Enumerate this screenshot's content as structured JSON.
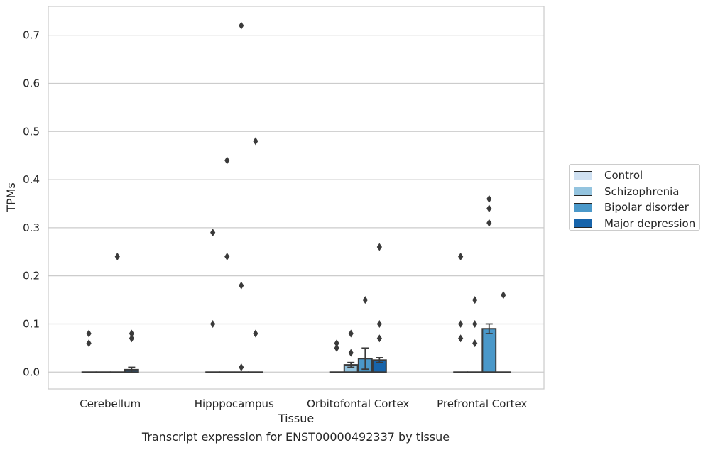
{
  "caption": "Transcript expression for ENST00000492337 by tissue",
  "colors": {
    "Control": "#d0e1f2",
    "Schizophrenia": "#94c4df",
    "Bipolar disorder": "#4a98c9",
    "Major depression": "#1764ab",
    "outline": "#3a3a3a",
    "grid": "#cccccc"
  },
  "legend": {
    "items": [
      {
        "label": "Control",
        "color": "#d0e1f2"
      },
      {
        "label": "Schizophrenia",
        "color": "#94c4df"
      },
      {
        "label": "Bipolar disorder",
        "color": "#4a98c9"
      },
      {
        "label": "Major depression",
        "color": "#1764ab"
      }
    ]
  },
  "chart_data": {
    "type": "bar",
    "title": "",
    "xlabel": "Tissue",
    "ylabel": "TPMs",
    "categories": [
      "Cerebellum",
      "Hipppocampus",
      "Orbitofontal Cortex",
      "Prefrontal Cortex"
    ],
    "ylim": [
      -0.035,
      0.76
    ],
    "yticks": [
      "0.0",
      "0.1",
      "0.2",
      "0.3",
      "0.4",
      "0.5",
      "0.6",
      "0.7"
    ],
    "grid": true,
    "legend_position": "right",
    "series": [
      {
        "name": "Control",
        "values": [
          0,
          0,
          0,
          0
        ],
        "errors": [
          0,
          0,
          0,
          0
        ]
      },
      {
        "name": "Schizophrenia",
        "values": [
          0,
          0,
          0.015,
          0
        ],
        "errors": [
          0,
          0,
          0.005,
          0
        ]
      },
      {
        "name": "Bipolar disorder",
        "values": [
          0,
          0,
          0.028,
          0.09
        ],
        "errors": [
          0,
          0,
          0.022,
          0.01
        ]
      },
      {
        "name": "Major depression",
        "values": [
          0.005,
          0,
          0.025,
          0
        ],
        "errors": [
          0.005,
          0,
          0.005,
          0
        ]
      }
    ],
    "outliers": [
      {
        "category": "Cerebellum",
        "series": "Control",
        "values": [
          0.08,
          0.06
        ]
      },
      {
        "category": "Cerebellum",
        "series": "Bipolar disorder",
        "values": [
          0.24
        ]
      },
      {
        "category": "Cerebellum",
        "series": "Major depression",
        "values": [
          0.08,
          0.07
        ]
      },
      {
        "category": "Hipppocampus",
        "series": "Control",
        "values": [
          0.29,
          0.1
        ]
      },
      {
        "category": "Hipppocampus",
        "series": "Schizophrenia",
        "values": [
          0.44,
          0.24
        ]
      },
      {
        "category": "Hipppocampus",
        "series": "Bipolar disorder",
        "values": [
          0.72,
          0.18,
          0.01
        ]
      },
      {
        "category": "Hipppocampus",
        "series": "Major depression",
        "values": [
          0.48,
          0.08
        ]
      },
      {
        "category": "Orbitofontal Cortex",
        "series": "Control",
        "values": [
          0.06,
          0.05
        ]
      },
      {
        "category": "Orbitofontal Cortex",
        "series": "Schizophrenia",
        "values": [
          0.08,
          0.04
        ]
      },
      {
        "category": "Orbitofontal Cortex",
        "series": "Bipolar disorder",
        "values": [
          0.15
        ]
      },
      {
        "category": "Orbitofontal Cortex",
        "series": "Major depression",
        "values": [
          0.26,
          0.1,
          0.07
        ]
      },
      {
        "category": "Prefrontal Cortex",
        "series": "Control",
        "values": [
          0.24,
          0.1,
          0.07
        ]
      },
      {
        "category": "Prefrontal Cortex",
        "series": "Schizophrenia",
        "values": [
          0.15,
          0.1,
          0.06
        ]
      },
      {
        "category": "Prefrontal Cortex",
        "series": "Bipolar disorder",
        "values": [
          0.36,
          0.34,
          0.31
        ]
      },
      {
        "category": "Prefrontal Cortex",
        "series": "Major depression",
        "values": [
          0.16
        ]
      }
    ]
  }
}
